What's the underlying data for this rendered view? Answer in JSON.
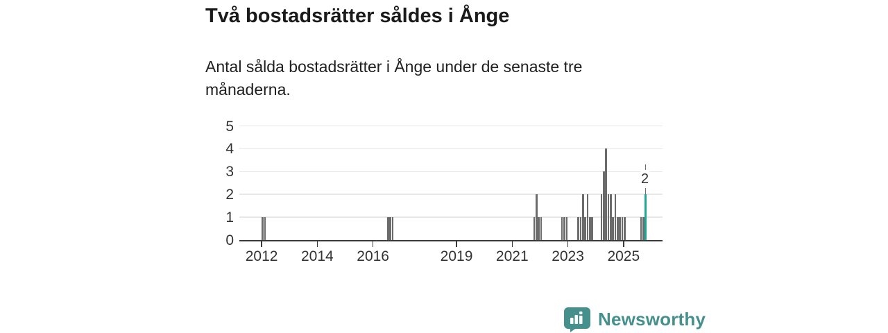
{
  "title": "Två bostadsrätter såldes i Ånge",
  "subtitle": "Antal sålda bostadsrätter i Ånge under de senaste tre månaderna.",
  "branding": {
    "logo_text": "Newsworthy",
    "logo_icon": "bar-chart-speech-bubble-icon",
    "logo_color": "#45908d"
  },
  "chart_data": {
    "type": "bar",
    "title": "Två bostadsrätter såldes i Ånge",
    "subtitle": "Antal sålda bostadsrätter i Ånge under de senaste tre månaderna.",
    "xlabel": "",
    "ylabel": "",
    "ylim": [
      0,
      5
    ],
    "yticks": [
      0,
      1,
      2,
      3,
      4,
      5
    ],
    "xticks": [
      2012,
      2014,
      2016,
      2019,
      2021,
      2023,
      2025
    ],
    "x_domain_years": [
      2011.2,
      2026.4
    ],
    "grid": true,
    "bar_color": "#6b6b6b",
    "highlight_color": "#21a69a",
    "annotation": {
      "period": "2025-10",
      "label": "2"
    },
    "points": [
      {
        "period": "2012-01",
        "value": 1
      },
      {
        "period": "2012-02",
        "value": 1
      },
      {
        "period": "2016-07",
        "value": 1
      },
      {
        "period": "2016-08",
        "value": 1
      },
      {
        "period": "2016-09",
        "value": 1
      },
      {
        "period": "2021-10",
        "value": 1
      },
      {
        "period": "2021-11",
        "value": 2
      },
      {
        "period": "2021-12",
        "value": 1
      },
      {
        "period": "2022-01",
        "value": 1
      },
      {
        "period": "2022-10",
        "value": 1
      },
      {
        "period": "2022-11",
        "value": 1
      },
      {
        "period": "2022-12",
        "value": 1
      },
      {
        "period": "2023-05",
        "value": 1
      },
      {
        "period": "2023-06",
        "value": 1
      },
      {
        "period": "2023-07",
        "value": 2
      },
      {
        "period": "2023-08",
        "value": 1
      },
      {
        "period": "2023-09",
        "value": 2
      },
      {
        "period": "2023-10",
        "value": 1
      },
      {
        "period": "2023-11",
        "value": 1
      },
      {
        "period": "2024-03",
        "value": 2
      },
      {
        "period": "2024-04",
        "value": 3
      },
      {
        "period": "2024-05",
        "value": 4
      },
      {
        "period": "2024-06",
        "value": 2
      },
      {
        "period": "2024-07",
        "value": 2
      },
      {
        "period": "2024-08",
        "value": 1
      },
      {
        "period": "2024-09",
        "value": 2
      },
      {
        "period": "2024-10",
        "value": 1
      },
      {
        "period": "2024-11",
        "value": 1
      },
      {
        "period": "2024-12",
        "value": 1
      },
      {
        "period": "2025-01",
        "value": 1
      },
      {
        "period": "2025-08",
        "value": 1
      },
      {
        "period": "2025-09",
        "value": 1
      },
      {
        "period": "2025-10",
        "value": 2,
        "highlight": true
      }
    ]
  }
}
